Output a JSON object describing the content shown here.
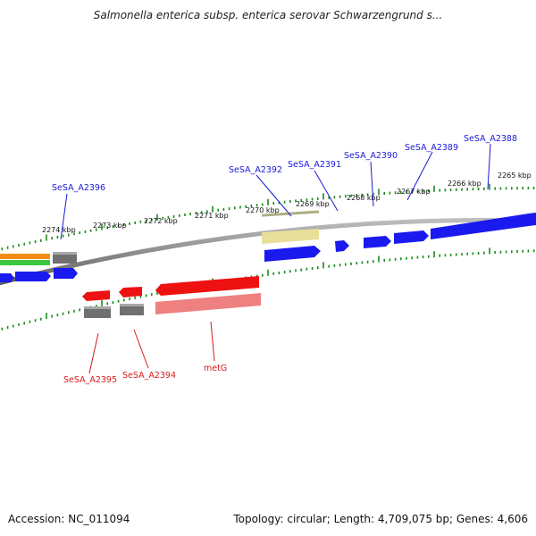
{
  "title": "Salmonella enterica subsp. enterica serovar Schwarzengrund s...",
  "footer": {
    "accession": "Accession: NC_011094",
    "summary": "Topology: circular; Length: 4,709,075 bp; Genes: 4,606"
  },
  "colors": {
    "background": "#ffffff",
    "backbone": "#8a8a8a",
    "tick": "#1a8a1a",
    "cds_forward": "#1a1aee",
    "cds_reverse": "#ee1111",
    "reverse_feature_light": "#ee8080",
    "pseudo_gray": "#707070",
    "khaki": "#e8e09a",
    "orange": "#f08c14",
    "green": "#3cc83c",
    "label_forward": "#1a1ad8",
    "label_reverse": "#d81a1a"
  },
  "scale": {
    "tick_labels": [
      "2274 kbp",
      "2273 kbp",
      "2272 kbp",
      "2271 kbp",
      "2270 kbp",
      "2269 kbp",
      "2268 kbp",
      "2267 kbp",
      "2266 kbp",
      "2265 kbp"
    ]
  },
  "genes": {
    "forward": [
      "SeSA_A2396",
      "SeSA_A2392",
      "SeSA_A2391",
      "SeSA_A2390",
      "SeSA_A2389",
      "SeSA_A2388"
    ],
    "reverse": [
      "SeSA_A2395",
      "SeSA_A2394",
      "metG"
    ]
  }
}
